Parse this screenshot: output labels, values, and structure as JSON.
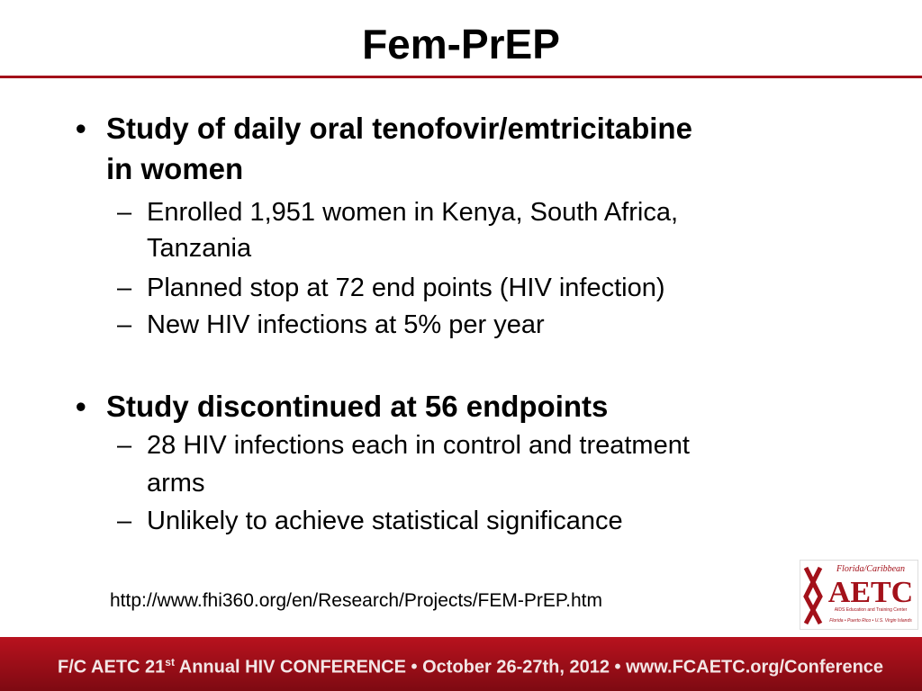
{
  "header": {
    "title": "Fem-PrEP"
  },
  "bullets": [
    {
      "text": "Study of daily oral tenofovir/emtricitabine",
      "text_cont": "in women",
      "subs": [
        [
          "Enrolled 1,951 women in Kenya, South Africa,",
          "Tanzania"
        ],
        [
          "Planned stop at 72 end points (HIV infection)"
        ],
        [
          "New HIV infections at 5% per year"
        ]
      ]
    },
    {
      "text": "Study discontinued at 56 endpoints",
      "subs": [
        [
          "28 HIV infections each in control and treatment",
          "arms"
        ],
        [
          "Unlikely to achieve statistical significance"
        ]
      ]
    }
  ],
  "link": "http://www.fhi360.org/en/Research/Projects/FEM-PrEP.htm",
  "logo": {
    "top": "Florida/Caribbean",
    "name": "AETC",
    "sub": "AIDS Education and Training Center",
    "bottom": "Florida • Puerto Rico • U.S. Virgin Islands"
  },
  "footer": {
    "pre": "F/C AETC 21",
    "sup": "st",
    "post": " Annual HIV CONFERENCE • October 26-27th, 2012 • www.FCAETC.org/Conference"
  }
}
